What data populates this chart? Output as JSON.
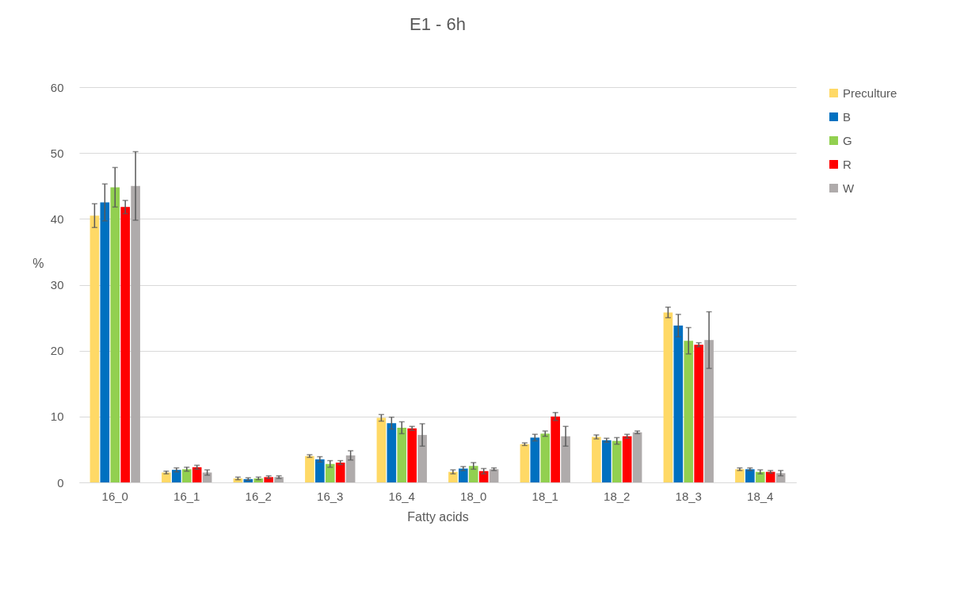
{
  "chart_data": {
    "type": "bar",
    "title": "E1 - 6h",
    "xlabel": "Fatty acids",
    "ylabel": "%",
    "categories": [
      "16_0",
      "16_1",
      "16_2",
      "16_3",
      "16_4",
      "18_0",
      "18_1",
      "18_2",
      "18_3",
      "18_4"
    ],
    "series": [
      {
        "name": "Preculture",
        "color": "#ffd966",
        "values": [
          40.5,
          1.5,
          0.6,
          4.0,
          9.8,
          1.6,
          5.8,
          6.9,
          25.8,
          2.0
        ],
        "errors": [
          1.8,
          0.2,
          0.2,
          0.2,
          0.5,
          0.3,
          0.2,
          0.3,
          0.8,
          0.2
        ]
      },
      {
        "name": "B",
        "color": "#0070c0",
        "values": [
          42.5,
          1.9,
          0.5,
          3.5,
          9.0,
          2.1,
          6.8,
          6.4,
          23.8,
          2.0
        ],
        "errors": [
          2.8,
          0.3,
          0.2,
          0.4,
          0.9,
          0.3,
          0.5,
          0.3,
          1.7,
          0.2
        ]
      },
      {
        "name": "G",
        "color": "#92d050",
        "values": [
          44.8,
          2.0,
          0.6,
          2.8,
          8.3,
          2.5,
          7.4,
          6.3,
          21.5,
          1.6
        ],
        "errors": [
          3.0,
          0.3,
          0.2,
          0.5,
          0.9,
          0.5,
          0.4,
          0.5,
          2.0,
          0.3
        ]
      },
      {
        "name": "R",
        "color": "#ff0000",
        "values": [
          41.8,
          2.3,
          0.8,
          3.0,
          8.2,
          1.7,
          10.0,
          7.0,
          20.9,
          1.6
        ],
        "errors": [
          1.0,
          0.3,
          0.2,
          0.3,
          0.3,
          0.4,
          0.6,
          0.3,
          0.3,
          0.2
        ]
      },
      {
        "name": "W",
        "color": "#afabab",
        "values": [
          45.0,
          1.5,
          0.8,
          4.1,
          7.2,
          2.0,
          7.0,
          7.6,
          21.6,
          1.4
        ],
        "errors": [
          5.2,
          0.4,
          0.2,
          0.7,
          1.7,
          0.2,
          1.5,
          0.2,
          4.3,
          0.4
        ]
      }
    ],
    "ylim": [
      0,
      60
    ],
    "yticks": [
      0,
      10,
      20,
      30,
      40,
      50,
      60
    ],
    "grid": "y",
    "legend": "right"
  }
}
